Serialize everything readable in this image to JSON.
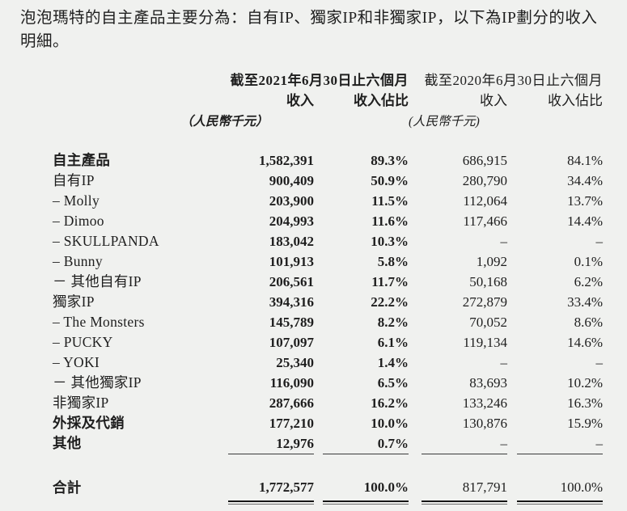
{
  "colors": {
    "background": "#f0f1ef",
    "text": "#1e1e1e"
  },
  "intro": "泡泡瑪特的自主產品主要分為：自有IP、獨家IP和非獨家IP，以下為IP劃分的收入明細。",
  "table": {
    "header": {
      "period_2021": "截至2021年6月30日止六個月",
      "period_2020": "截至2020年6月30日止六個月",
      "revenue_label_2021": "收入",
      "share_label_2021": "收入佔比",
      "revenue_label_2020": "收入",
      "share_label_2020": "收入佔比",
      "unit_2021": "（人民幣千元）",
      "unit_2020": "(人民幣千元)"
    },
    "rows": [
      {
        "label": "自主產品",
        "bold": true,
        "revenue_2021": "1,582,391",
        "share_2021": "89.3%",
        "revenue_2020": "686,915",
        "share_2020": "84.1%"
      },
      {
        "label": "自有IP",
        "bold": false,
        "revenue_2021": "900,409",
        "share_2021": "50.9%",
        "revenue_2020": "280,790",
        "share_2020": "34.4%"
      },
      {
        "label": "– Molly",
        "bold": false,
        "revenue_2021": "203,900",
        "share_2021": "11.5%",
        "revenue_2020": "112,064",
        "share_2020": "13.7%"
      },
      {
        "label": "– Dimoo",
        "bold": false,
        "revenue_2021": "204,993",
        "share_2021": "11.6%",
        "revenue_2020": "117,466",
        "share_2020": "14.4%"
      },
      {
        "label": "– SKULLPANDA",
        "bold": false,
        "revenue_2021": "183,042",
        "share_2021": "10.3%",
        "revenue_2020": "–",
        "share_2020": "–"
      },
      {
        "label": "– Bunny",
        "bold": false,
        "revenue_2021": "101,913",
        "share_2021": "5.8%",
        "revenue_2020": "1,092",
        "share_2020": "0.1%"
      },
      {
        "label": "－ 其他自有IP",
        "bold": false,
        "revenue_2021": "206,561",
        "share_2021": "11.7%",
        "revenue_2020": "50,168",
        "share_2020": "6.2%"
      },
      {
        "label": "獨家IP",
        "bold": false,
        "revenue_2021": "394,316",
        "share_2021": "22.2%",
        "revenue_2020": "272,879",
        "share_2020": "33.4%"
      },
      {
        "label": "– The Monsters",
        "bold": false,
        "revenue_2021": "145,789",
        "share_2021": "8.2%",
        "revenue_2020": "70,052",
        "share_2020": "8.6%"
      },
      {
        "label": "– PUCKY",
        "bold": false,
        "revenue_2021": "107,097",
        "share_2021": "6.1%",
        "revenue_2020": "119,134",
        "share_2020": "14.6%"
      },
      {
        "label": "– YOKI",
        "bold": false,
        "revenue_2021": "25,340",
        "share_2021": "1.4%",
        "revenue_2020": "–",
        "share_2020": "–"
      },
      {
        "label": "－ 其他獨家IP",
        "bold": false,
        "revenue_2021": "116,090",
        "share_2021": "6.5%",
        "revenue_2020": "83,693",
        "share_2020": "10.2%"
      },
      {
        "label": "非獨家IP",
        "bold": false,
        "revenue_2021": "287,666",
        "share_2021": "16.2%",
        "revenue_2020": "133,246",
        "share_2020": "16.3%"
      },
      {
        "label": "外採及代銷",
        "bold": true,
        "revenue_2021": "177,210",
        "share_2021": "10.0%",
        "revenue_2020": "130,876",
        "share_2020": "15.9%"
      },
      {
        "label": "其他",
        "bold": true,
        "revenue_2021": "12,976",
        "share_2021": "0.7%",
        "revenue_2020": "–",
        "share_2020": "–"
      }
    ],
    "total": {
      "label": "合計",
      "revenue_2021": "1,772,577",
      "share_2021": "100.0%",
      "revenue_2020": "817,791",
      "share_2020": "100.0%"
    }
  }
}
